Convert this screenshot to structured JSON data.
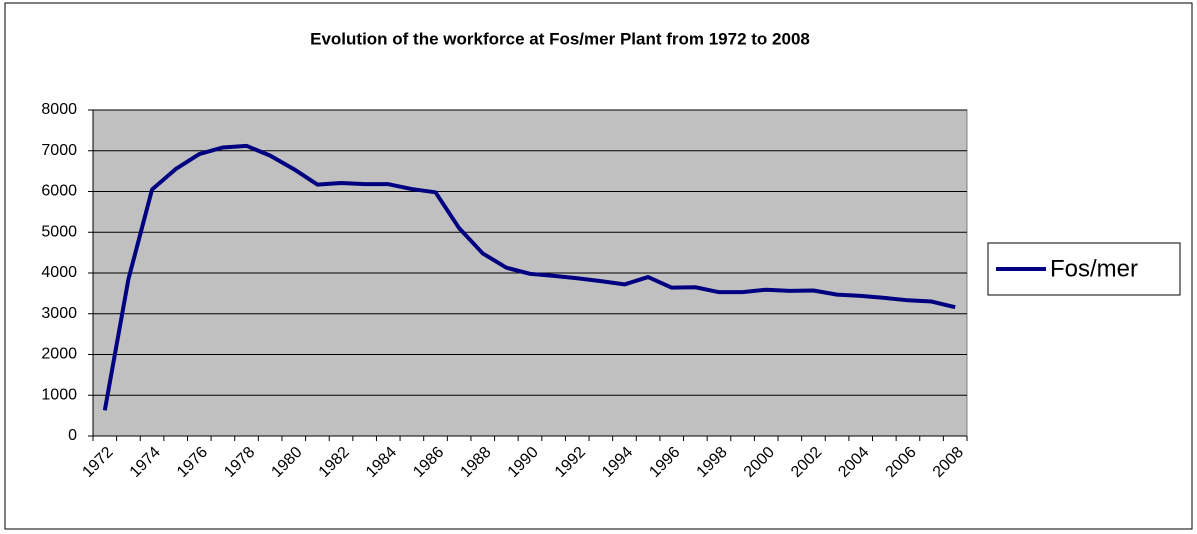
{
  "chart_data": {
    "type": "line",
    "title": "Evolution of the workforce at Fos/mer Plant from 1972 to 2008",
    "categories": [
      "1972",
      null,
      "1974",
      null,
      "1976",
      null,
      "1978",
      null,
      "1980",
      null,
      "1982",
      null,
      "1984",
      null,
      "1986",
      null,
      "1988",
      null,
      "1990",
      null,
      "1992",
      null,
      "1994",
      null,
      "1996",
      null,
      "1998",
      null,
      "2000",
      null,
      "2002",
      null,
      "2004",
      null,
      "2006",
      null,
      "2008"
    ],
    "series": [
      {
        "name": "Fos/mer",
        "color": "#000080",
        "values": [
          630,
          3850,
          6050,
          6550,
          6920,
          7080,
          7120,
          6880,
          6550,
          6170,
          6210,
          6180,
          6180,
          6060,
          5980,
          5100,
          4480,
          4130,
          3980,
          3930,
          3870,
          3800,
          3720,
          3900,
          3640,
          3650,
          3530,
          3530,
          3590,
          3560,
          3570,
          3470,
          3440,
          3390,
          3330,
          3300,
          3160
        ]
      }
    ],
    "ylim": [
      0,
      8000
    ],
    "yticks": [
      0,
      1000,
      2000,
      3000,
      4000,
      5000,
      6000,
      7000,
      8000
    ],
    "grid": true,
    "legend": "right",
    "plot_background": "#c0c0c0"
  }
}
